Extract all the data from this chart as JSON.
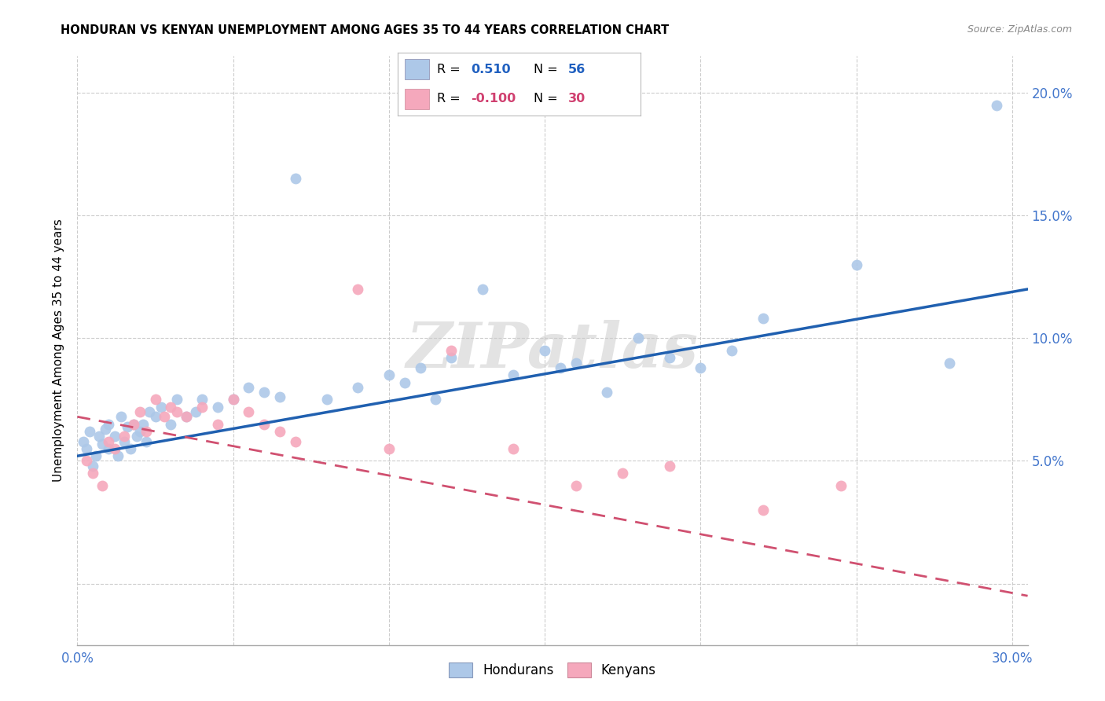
{
  "title": "HONDURAN VS KENYAN UNEMPLOYMENT AMONG AGES 35 TO 44 YEARS CORRELATION CHART",
  "source": "Source: ZipAtlas.com",
  "ylabel": "Unemployment Among Ages 35 to 44 years",
  "honduran_color": "#adc8e8",
  "kenyan_color": "#f5a8bc",
  "honduran_line_color": "#2060b0",
  "kenyan_line_color": "#d05070",
  "background_color": "#ffffff",
  "grid_color": "#cccccc",
  "watermark": "ZIPatlas",
  "xlim": [
    0.0,
    0.305
  ],
  "ylim": [
    -0.025,
    0.215
  ],
  "hon_x": [
    0.002,
    0.003,
    0.004,
    0.005,
    0.006,
    0.007,
    0.008,
    0.009,
    0.01,
    0.01,
    0.012,
    0.013,
    0.014,
    0.015,
    0.016,
    0.017,
    0.018,
    0.019,
    0.02,
    0.021,
    0.022,
    0.023,
    0.025,
    0.027,
    0.03,
    0.032,
    0.035,
    0.038,
    0.04,
    0.045,
    0.05,
    0.055,
    0.06,
    0.065,
    0.07,
    0.08,
    0.09,
    0.1,
    0.105,
    0.11,
    0.115,
    0.12,
    0.13,
    0.14,
    0.15,
    0.155,
    0.16,
    0.17,
    0.18,
    0.19,
    0.2,
    0.21,
    0.22,
    0.25,
    0.28,
    0.295
  ],
  "hon_y": [
    0.058,
    0.055,
    0.062,
    0.048,
    0.052,
    0.06,
    0.057,
    0.063,
    0.065,
    0.055,
    0.06,
    0.052,
    0.068,
    0.058,
    0.064,
    0.055,
    0.065,
    0.06,
    0.062,
    0.065,
    0.058,
    0.07,
    0.068,
    0.072,
    0.065,
    0.075,
    0.068,
    0.07,
    0.075,
    0.072,
    0.075,
    0.08,
    0.078,
    0.076,
    0.165,
    0.075,
    0.08,
    0.085,
    0.082,
    0.088,
    0.075,
    0.092,
    0.12,
    0.085,
    0.095,
    0.088,
    0.09,
    0.078,
    0.1,
    0.092,
    0.088,
    0.095,
    0.108,
    0.13,
    0.09,
    0.195
  ],
  "ken_x": [
    0.003,
    0.005,
    0.008,
    0.01,
    0.012,
    0.015,
    0.018,
    0.02,
    0.022,
    0.025,
    0.028,
    0.03,
    0.032,
    0.035,
    0.04,
    0.045,
    0.05,
    0.055,
    0.06,
    0.065,
    0.07,
    0.09,
    0.1,
    0.12,
    0.14,
    0.16,
    0.175,
    0.19,
    0.22,
    0.245
  ],
  "ken_y": [
    0.05,
    0.045,
    0.04,
    0.058,
    0.055,
    0.06,
    0.065,
    0.07,
    0.062,
    0.075,
    0.068,
    0.072,
    0.07,
    0.068,
    0.072,
    0.065,
    0.075,
    0.07,
    0.065,
    0.062,
    0.058,
    0.12,
    0.055,
    0.095,
    0.055,
    0.04,
    0.045,
    0.048,
    0.03,
    0.04
  ],
  "hon_line_x0": 0.0,
  "hon_line_x1": 0.305,
  "hon_line_y0": 0.052,
  "hon_line_y1": 0.12,
  "ken_line_x0": 0.0,
  "ken_line_x1": 0.305,
  "ken_line_y0": 0.068,
  "ken_line_y1": -0.005
}
